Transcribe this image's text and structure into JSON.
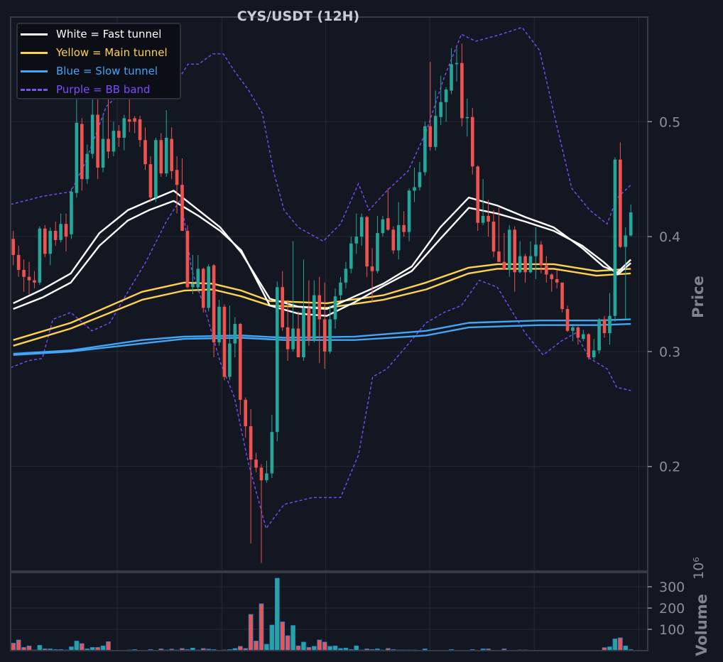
{
  "chart_data": {
    "type": "candlestick",
    "title": "CYS/USDT (12H)",
    "ylabel": "Price",
    "volume_label": "Volume",
    "volume_scale": "10⁶",
    "ylim": [
      0.109,
      0.591
    ],
    "xlim": [
      -0.5,
      120.2
    ],
    "volume_ylim": [
      0,
      367
    ],
    "grid": true,
    "price_ticks": [
      "0.5",
      "0.4",
      "0.3",
      "0.2"
    ],
    "price_tick_values": [
      0.5,
      0.4,
      0.3,
      0.2
    ],
    "volume_ticks": [
      "300",
      "200",
      "100"
    ],
    "volume_tick_values": [
      300,
      200,
      100
    ],
    "x_grid_values": [
      19.7,
      39.5,
      59.2,
      78.9,
      98.7,
      118.5
    ],
    "colors": {
      "up": "#26a69a",
      "down": "#ef5350",
      "fast": "#ffffff",
      "main": "#ffd24d",
      "slow": "#42a5f5",
      "bb": "#7c4dff",
      "volume_edge": "#1e88e5"
    },
    "legend": {
      "placement": "top-left",
      "items": [
        {
          "label": "White = Fast tunnel",
          "color": "#ffffff",
          "style": "solid"
        },
        {
          "label": "Yellow = Main tunnel",
          "color": "#ffd24d",
          "style": "solid"
        },
        {
          "label": "Blue = Slow tunnel",
          "color": "#42a5f5",
          "style": "solid"
        },
        {
          "label": "Purple = BB band",
          "color": "#7c4dff",
          "style": "dashed"
        }
      ]
    },
    "candles_ohlc": [
      [
        0.398,
        0.405,
        0.375,
        0.384
      ],
      [
        0.384,
        0.392,
        0.365,
        0.371
      ],
      [
        0.371,
        0.38,
        0.352,
        0.365
      ],
      [
        0.365,
        0.378,
        0.35,
        0.362
      ],
      [
        0.362,
        0.37,
        0.355,
        0.36
      ],
      [
        0.36,
        0.409,
        0.358,
        0.407
      ],
      [
        0.407,
        0.41,
        0.382,
        0.385
      ],
      [
        0.385,
        0.408,
        0.375,
        0.405
      ],
      [
        0.405,
        0.413,
        0.392,
        0.397
      ],
      [
        0.397,
        0.42,
        0.395,
        0.411
      ],
      [
        0.411,
        0.42,
        0.387,
        0.4
      ],
      [
        0.402,
        0.442,
        0.398,
        0.439
      ],
      [
        0.438,
        0.53,
        0.434,
        0.499
      ],
      [
        0.498,
        0.503,
        0.44,
        0.45
      ],
      [
        0.45,
        0.48,
        0.446,
        0.472
      ],
      [
        0.472,
        0.52,
        0.468,
        0.506
      ],
      [
        0.506,
        0.52,
        0.45,
        0.46
      ],
      [
        0.46,
        0.505,
        0.456,
        0.485
      ],
      [
        0.485,
        0.52,
        0.468,
        0.474
      ],
      [
        0.474,
        0.5,
        0.47,
        0.492
      ],
      [
        0.492,
        0.497,
        0.478,
        0.486
      ],
      [
        0.486,
        0.506,
        0.475,
        0.503
      ],
      [
        0.502,
        0.533,
        0.491,
        0.5
      ],
      [
        0.503,
        0.505,
        0.49,
        0.5
      ],
      [
        0.502,
        0.505,
        0.478,
        0.484
      ],
      [
        0.484,
        0.495,
        0.458,
        0.463
      ],
      [
        0.463,
        0.47,
        0.43,
        0.434
      ],
      [
        0.434,
        0.486,
        0.43,
        0.484
      ],
      [
        0.484,
        0.49,
        0.452,
        0.455
      ],
      [
        0.455,
        0.51,
        0.452,
        0.486
      ],
      [
        0.485,
        0.495,
        0.45,
        0.457
      ],
      [
        0.458,
        0.47,
        0.42,
        0.445
      ],
      [
        0.445,
        0.468,
        0.405,
        0.405
      ],
      [
        0.405,
        0.41,
        0.355,
        0.356
      ],
      [
        0.356,
        0.384,
        0.35,
        0.359
      ],
      [
        0.356,
        0.384,
        0.352,
        0.372
      ],
      [
        0.372,
        0.373,
        0.334,
        0.338
      ],
      [
        0.338,
        0.376,
        0.335,
        0.374
      ],
      [
        0.375,
        0.376,
        0.295,
        0.308
      ],
      [
        0.308,
        0.345,
        0.305,
        0.339
      ],
      [
        0.339,
        0.341,
        0.275,
        0.278
      ],
      [
        0.278,
        0.34,
        0.275,
        0.307
      ],
      [
        0.307,
        0.33,
        0.295,
        0.324
      ],
      [
        0.324,
        0.325,
        0.245,
        0.258
      ],
      [
        0.258,
        0.26,
        0.225,
        0.235
      ],
      [
        0.235,
        0.25,
        0.133,
        0.206
      ],
      [
        0.206,
        0.212,
        0.195,
        0.199
      ],
      [
        0.199,
        0.202,
        0.116,
        0.188
      ],
      [
        0.188,
        0.205,
        0.186,
        0.194
      ],
      [
        0.194,
        0.245,
        0.19,
        0.23
      ],
      [
        0.23,
        0.361,
        0.222,
        0.356
      ],
      [
        0.356,
        0.37,
        0.318,
        0.321
      ],
      [
        0.321,
        0.345,
        0.292,
        0.302
      ],
      [
        0.302,
        0.396,
        0.3,
        0.32
      ],
      [
        0.32,
        0.335,
        0.295,
        0.295
      ],
      [
        0.295,
        0.38,
        0.292,
        0.338
      ],
      [
        0.338,
        0.362,
        0.305,
        0.31
      ],
      [
        0.31,
        0.362,
        0.308,
        0.349
      ],
      [
        0.349,
        0.365,
        0.29,
        0.328
      ],
      [
        0.328,
        0.36,
        0.285,
        0.3
      ],
      [
        0.3,
        0.34,
        0.298,
        0.328
      ],
      [
        0.328,
        0.355,
        0.32,
        0.348
      ],
      [
        0.349,
        0.365,
        0.345,
        0.36
      ],
      [
        0.36,
        0.378,
        0.355,
        0.372
      ],
      [
        0.372,
        0.4,
        0.368,
        0.394
      ],
      [
        0.394,
        0.42,
        0.385,
        0.4
      ],
      [
        0.4,
        0.42,
        0.392,
        0.417
      ],
      [
        0.417,
        0.418,
        0.365,
        0.374
      ],
      [
        0.374,
        0.39,
        0.343,
        0.37
      ],
      [
        0.37,
        0.418,
        0.368,
        0.403
      ],
      [
        0.403,
        0.418,
        0.4,
        0.415
      ],
      [
        0.416,
        0.442,
        0.405,
        0.406
      ],
      [
        0.406,
        0.409,
        0.385,
        0.388
      ],
      [
        0.388,
        0.43,
        0.38,
        0.41
      ],
      [
        0.41,
        0.422,
        0.4,
        0.404
      ],
      [
        0.404,
        0.442,
        0.396,
        0.44
      ],
      [
        0.44,
        0.46,
        0.43,
        0.443
      ],
      [
        0.443,
        0.465,
        0.44,
        0.456
      ],
      [
        0.456,
        0.5,
        0.453,
        0.496
      ],
      [
        0.496,
        0.552,
        0.475,
        0.478
      ],
      [
        0.478,
        0.527,
        0.475,
        0.505
      ],
      [
        0.504,
        0.54,
        0.497,
        0.517
      ],
      [
        0.517,
        0.53,
        0.5,
        0.528
      ],
      [
        0.527,
        0.564,
        0.524,
        0.55
      ],
      [
        0.55,
        0.565,
        0.535,
        0.551
      ],
      [
        0.551,
        0.568,
        0.496,
        0.503
      ],
      [
        0.503,
        0.52,
        0.487,
        0.504
      ],
      [
        0.504,
        0.512,
        0.454,
        0.461
      ],
      [
        0.461,
        0.462,
        0.405,
        0.412
      ],
      [
        0.412,
        0.45,
        0.41,
        0.418
      ],
      [
        0.418,
        0.432,
        0.4,
        0.413
      ],
      [
        0.413,
        0.423,
        0.382,
        0.387
      ],
      [
        0.387,
        0.425,
        0.378,
        0.378
      ],
      [
        0.378,
        0.403,
        0.371,
        0.371
      ],
      [
        0.371,
        0.41,
        0.365,
        0.406
      ],
      [
        0.406,
        0.409,
        0.352,
        0.369
      ],
      [
        0.369,
        0.396,
        0.368,
        0.383
      ],
      [
        0.383,
        0.385,
        0.36,
        0.369
      ],
      [
        0.369,
        0.396,
        0.368,
        0.383
      ],
      [
        0.383,
        0.408,
        0.363,
        0.393
      ],
      [
        0.393,
        0.396,
        0.368,
        0.375
      ],
      [
        0.375,
        0.383,
        0.36,
        0.367
      ],
      [
        0.367,
        0.368,
        0.352,
        0.363
      ],
      [
        0.363,
        0.371,
        0.355,
        0.36
      ],
      [
        0.36,
        0.36,
        0.334,
        0.337
      ],
      [
        0.337,
        0.34,
        0.317,
        0.318
      ],
      [
        0.318,
        0.324,
        0.309,
        0.321
      ],
      [
        0.321,
        0.322,
        0.306,
        0.312
      ],
      [
        0.311,
        0.319,
        0.309,
        0.315
      ],
      [
        0.315,
        0.316,
        0.293,
        0.295
      ],
      [
        0.295,
        0.311,
        0.293,
        0.301
      ],
      [
        0.301,
        0.329,
        0.298,
        0.328
      ],
      [
        0.328,
        0.331,
        0.312,
        0.316
      ],
      [
        0.316,
        0.351,
        0.306,
        0.331
      ],
      [
        0.331,
        0.469,
        0.326,
        0.467
      ],
      [
        0.467,
        0.482,
        0.39,
        0.391
      ],
      [
        0.391,
        0.408,
        0.328,
        0.401
      ],
      [
        0.401,
        0.428,
        0.4,
        0.421
      ]
    ],
    "volume_millions": [
      35,
      50,
      15,
      22,
      3,
      25,
      8,
      8,
      5,
      5,
      3,
      18,
      45,
      33,
      8,
      15,
      15,
      22,
      42,
      2,
      2,
      2,
      3,
      5,
      2,
      2,
      5,
      2,
      8,
      3,
      7,
      3,
      10,
      5,
      12,
      3,
      10,
      7,
      5,
      2,
      3,
      5,
      10,
      20,
      10,
      170,
      45,
      220,
      30,
      120,
      340,
      135,
      70,
      118,
      22,
      40,
      15,
      20,
      50,
      40,
      20,
      22,
      10,
      12,
      5,
      22,
      3,
      8,
      5,
      8,
      3,
      10,
      5,
      3,
      3,
      3,
      3,
      2,
      8,
      2,
      1,
      2,
      2,
      5,
      2,
      2,
      2,
      5,
      2,
      8,
      8,
      2,
      2,
      8,
      1,
      2,
      3,
      3,
      2,
      1,
      1,
      1,
      1,
      1,
      2,
      1,
      1,
      1,
      1,
      1,
      1,
      1,
      14,
      18,
      55,
      60,
      22,
      5
    ],
    "fast_tunnel_upper": [
      [
        0,
        0.342
      ],
      [
        5.5,
        0.354
      ],
      [
        10.9,
        0.368
      ],
      [
        16.3,
        0.403
      ],
      [
        21.7,
        0.423
      ],
      [
        25.7,
        0.431
      ],
      [
        30.4,
        0.44
      ],
      [
        35.1,
        0.423
      ],
      [
        39.2,
        0.408
      ],
      [
        43.2,
        0.386
      ],
      [
        48.6,
        0.346
      ],
      [
        54,
        0.339
      ],
      [
        59.4,
        0.337
      ],
      [
        64.7,
        0.348
      ],
      [
        70.1,
        0.359
      ],
      [
        75.5,
        0.374
      ],
      [
        80.9,
        0.408
      ],
      [
        86.3,
        0.434
      ],
      [
        91.7,
        0.427
      ],
      [
        97,
        0.417
      ],
      [
        102.4,
        0.408
      ],
      [
        107.8,
        0.39
      ],
      [
        111.8,
        0.374
      ],
      [
        114.5,
        0.369
      ],
      [
        117,
        0.38
      ]
    ],
    "fast_tunnel_lower": [
      [
        0,
        0.337
      ],
      [
        5.5,
        0.347
      ],
      [
        10.9,
        0.36
      ],
      [
        16.3,
        0.392
      ],
      [
        21.7,
        0.414
      ],
      [
        25.7,
        0.423
      ],
      [
        30.4,
        0.431
      ],
      [
        35.1,
        0.418
      ],
      [
        39.2,
        0.405
      ],
      [
        43.2,
        0.388
      ],
      [
        48.6,
        0.34
      ],
      [
        54,
        0.333
      ],
      [
        59.4,
        0.331
      ],
      [
        64.7,
        0.343
      ],
      [
        70.1,
        0.357
      ],
      [
        75.5,
        0.37
      ],
      [
        80.9,
        0.398
      ],
      [
        86.3,
        0.425
      ],
      [
        91.7,
        0.42
      ],
      [
        97,
        0.413
      ],
      [
        102.4,
        0.405
      ],
      [
        107.8,
        0.392
      ],
      [
        111.8,
        0.378
      ],
      [
        114.5,
        0.367
      ],
      [
        117,
        0.377
      ]
    ],
    "main_tunnel_upper": [
      [
        0,
        0.31
      ],
      [
        10.9,
        0.325
      ],
      [
        24.4,
        0.352
      ],
      [
        32.4,
        0.36
      ],
      [
        37.8,
        0.359
      ],
      [
        43.2,
        0.353
      ],
      [
        48.6,
        0.344
      ],
      [
        59.4,
        0.342
      ],
      [
        70.1,
        0.349
      ],
      [
        78.2,
        0.36
      ],
      [
        86.3,
        0.373
      ],
      [
        91.7,
        0.376
      ],
      [
        102.4,
        0.376
      ],
      [
        110.5,
        0.37
      ],
      [
        117,
        0.372
      ]
    ],
    "main_tunnel_lower": [
      [
        0,
        0.305
      ],
      [
        10.9,
        0.32
      ],
      [
        24.4,
        0.345
      ],
      [
        32.4,
        0.353
      ],
      [
        37.8,
        0.354
      ],
      [
        43.2,
        0.348
      ],
      [
        48.6,
        0.34
      ],
      [
        59.4,
        0.338
      ],
      [
        70.1,
        0.345
      ],
      [
        78.2,
        0.354
      ],
      [
        86.3,
        0.368
      ],
      [
        91.7,
        0.372
      ],
      [
        102.4,
        0.372
      ],
      [
        110.5,
        0.366
      ],
      [
        117,
        0.368
      ]
    ],
    "slow_tunnel_upper": [
      [
        0,
        0.298
      ],
      [
        10.9,
        0.301
      ],
      [
        24.4,
        0.31
      ],
      [
        32.4,
        0.313
      ],
      [
        43.2,
        0.314
      ],
      [
        51.3,
        0.312
      ],
      [
        64.7,
        0.313
      ],
      [
        78.2,
        0.318
      ],
      [
        86.3,
        0.325
      ],
      [
        99.7,
        0.327
      ],
      [
        110.5,
        0.327
      ],
      [
        117,
        0.328
      ]
    ],
    "slow_tunnel_lower": [
      [
        0,
        0.297
      ],
      [
        10.9,
        0.3
      ],
      [
        24.4,
        0.307
      ],
      [
        32.4,
        0.311
      ],
      [
        43.2,
        0.312
      ],
      [
        51.3,
        0.31
      ],
      [
        64.7,
        0.31
      ],
      [
        78.2,
        0.314
      ],
      [
        86.3,
        0.321
      ],
      [
        99.7,
        0.323
      ],
      [
        110.5,
        0.323
      ],
      [
        117,
        0.324
      ]
    ],
    "bb_upper": [
      [
        -0.5,
        0.428
      ],
      [
        5.5,
        0.435
      ],
      [
        10.9,
        0.439
      ],
      [
        13.6,
        0.464
      ],
      [
        17.6,
        0.513
      ],
      [
        21.7,
        0.531
      ],
      [
        25.7,
        0.528
      ],
      [
        29.7,
        0.525
      ],
      [
        33.1,
        0.55
      ],
      [
        35.1,
        0.55
      ],
      [
        37.8,
        0.559
      ],
      [
        39.8,
        0.559
      ],
      [
        41.9,
        0.544
      ],
      [
        44.5,
        0.528
      ],
      [
        47.2,
        0.507
      ],
      [
        49.3,
        0.457
      ],
      [
        51.3,
        0.423
      ],
      [
        54,
        0.408
      ],
      [
        58.7,
        0.396
      ],
      [
        62,
        0.411
      ],
      [
        65.4,
        0.446
      ],
      [
        67.4,
        0.423
      ],
      [
        70.8,
        0.44
      ],
      [
        74.8,
        0.457
      ],
      [
        78.2,
        0.491
      ],
      [
        81.6,
        0.538
      ],
      [
        84.9,
        0.576
      ],
      [
        87.6,
        0.57
      ],
      [
        91.7,
        0.575
      ],
      [
        96.4,
        0.582
      ],
      [
        99.7,
        0.562
      ],
      [
        103.1,
        0.494
      ],
      [
        105.8,
        0.442
      ],
      [
        109.2,
        0.423
      ],
      [
        112.5,
        0.411
      ],
      [
        114.3,
        0.433
      ],
      [
        117,
        0.445
      ]
    ],
    "bb_lower": [
      [
        -0.5,
        0.286
      ],
      [
        2.8,
        0.292
      ],
      [
        5.5,
        0.294
      ],
      [
        7.5,
        0.328
      ],
      [
        10.9,
        0.334
      ],
      [
        14.9,
        0.318
      ],
      [
        18.3,
        0.325
      ],
      [
        21.7,
        0.352
      ],
      [
        25,
        0.377
      ],
      [
        29.1,
        0.414
      ],
      [
        31.8,
        0.433
      ],
      [
        33.8,
        0.371
      ],
      [
        36.5,
        0.334
      ],
      [
        39.2,
        0.291
      ],
      [
        41.9,
        0.26
      ],
      [
        44.5,
        0.204
      ],
      [
        47.9,
        0.146
      ],
      [
        51.3,
        0.167
      ],
      [
        56.7,
        0.173
      ],
      [
        62,
        0.173
      ],
      [
        65.4,
        0.21
      ],
      [
        68.1,
        0.278
      ],
      [
        70.8,
        0.285
      ],
      [
        74.2,
        0.303
      ],
      [
        78.2,
        0.325
      ],
      [
        81.6,
        0.334
      ],
      [
        84.9,
        0.34
      ],
      [
        88.3,
        0.362
      ],
      [
        91.7,
        0.356
      ],
      [
        97,
        0.316
      ],
      [
        100.4,
        0.297
      ],
      [
        103.8,
        0.309
      ],
      [
        106.5,
        0.316
      ],
      [
        109.2,
        0.294
      ],
      [
        112.5,
        0.285
      ],
      [
        114.3,
        0.269
      ],
      [
        117,
        0.266
      ]
    ]
  }
}
